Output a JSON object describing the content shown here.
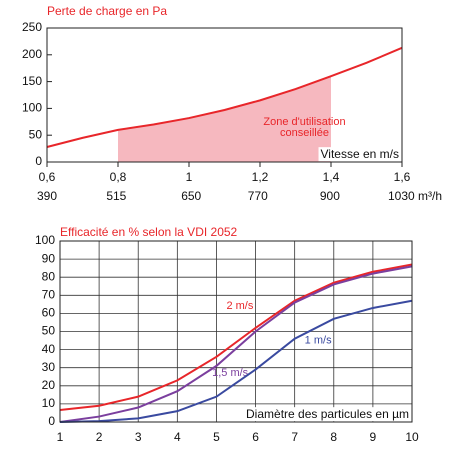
{
  "chart_data": [
    {
      "type": "line",
      "title": "Perte de charge en Pa",
      "x_label": "Vitesse en m/s",
      "x": [
        0.6,
        0.7,
        0.8,
        0.9,
        1.0,
        1.1,
        1.2,
        1.3,
        1.4,
        1.5,
        1.6
      ],
      "values": [
        28,
        45,
        60,
        70,
        82,
        97,
        115,
        136,
        160,
        185,
        213
      ],
      "color": "#e8262a",
      "zone": {
        "x": [
          0.8,
          1.4
        ],
        "label": [
          "Zone d'utilisation",
          "conseillée"
        ],
        "color": "#f6b8bf"
      },
      "xlim": [
        0.6,
        1.6
      ],
      "xticks": [
        {
          "value": 0.6,
          "label": "0,6"
        },
        {
          "value": 0.8,
          "label": "0,8"
        },
        1,
        {
          "value": 1.2,
          "label": "1,2"
        },
        {
          "value": 1.4,
          "label": "1,4"
        },
        {
          "value": 1.6,
          "label": "1,6"
        }
      ],
      "x2lim": [
        390,
        1030
      ],
      "x2ticks": [
        390,
        515,
        650,
        770,
        900,
        {
          "value": 1030,
          "label": "1030 m³/h"
        }
      ],
      "ylim": [
        0,
        250
      ],
      "yticks": [
        0,
        50,
        100,
        150,
        200,
        250
      ],
      "grid": false
    },
    {
      "type": "line",
      "title": "Efficacité en % selon la VDI 2052",
      "x_label": "Diamètre des particules en µm",
      "x": [
        1,
        2,
        3,
        4,
        5,
        6,
        7,
        8,
        9,
        10
      ],
      "series": [
        {
          "name": "2 m/s",
          "color": "#e8262a",
          "values": [
            6.6,
            9,
            14,
            23,
            36,
            52,
            67,
            77,
            83,
            87
          ]
        },
        {
          "name": "1,5 m/s",
          "color": "#7b3f9e",
          "values": [
            0,
            3,
            8,
            17,
            31,
            50,
            66,
            76,
            82,
            86
          ]
        },
        {
          "name": "1 m/s",
          "color": "#3a4aa0",
          "values": [
            0,
            0.5,
            2,
            6,
            14,
            29,
            46,
            57,
            63,
            67
          ]
        }
      ],
      "xlim": [
        1,
        10
      ],
      "xticks": [
        1,
        2,
        3,
        4,
        5,
        6,
        7,
        8,
        9,
        10
      ],
      "ylim": [
        0,
        100
      ],
      "yticks": [
        0,
        10,
        20,
        30,
        40,
        50,
        60,
        70,
        80,
        90,
        100
      ],
      "grid": true
    }
  ]
}
